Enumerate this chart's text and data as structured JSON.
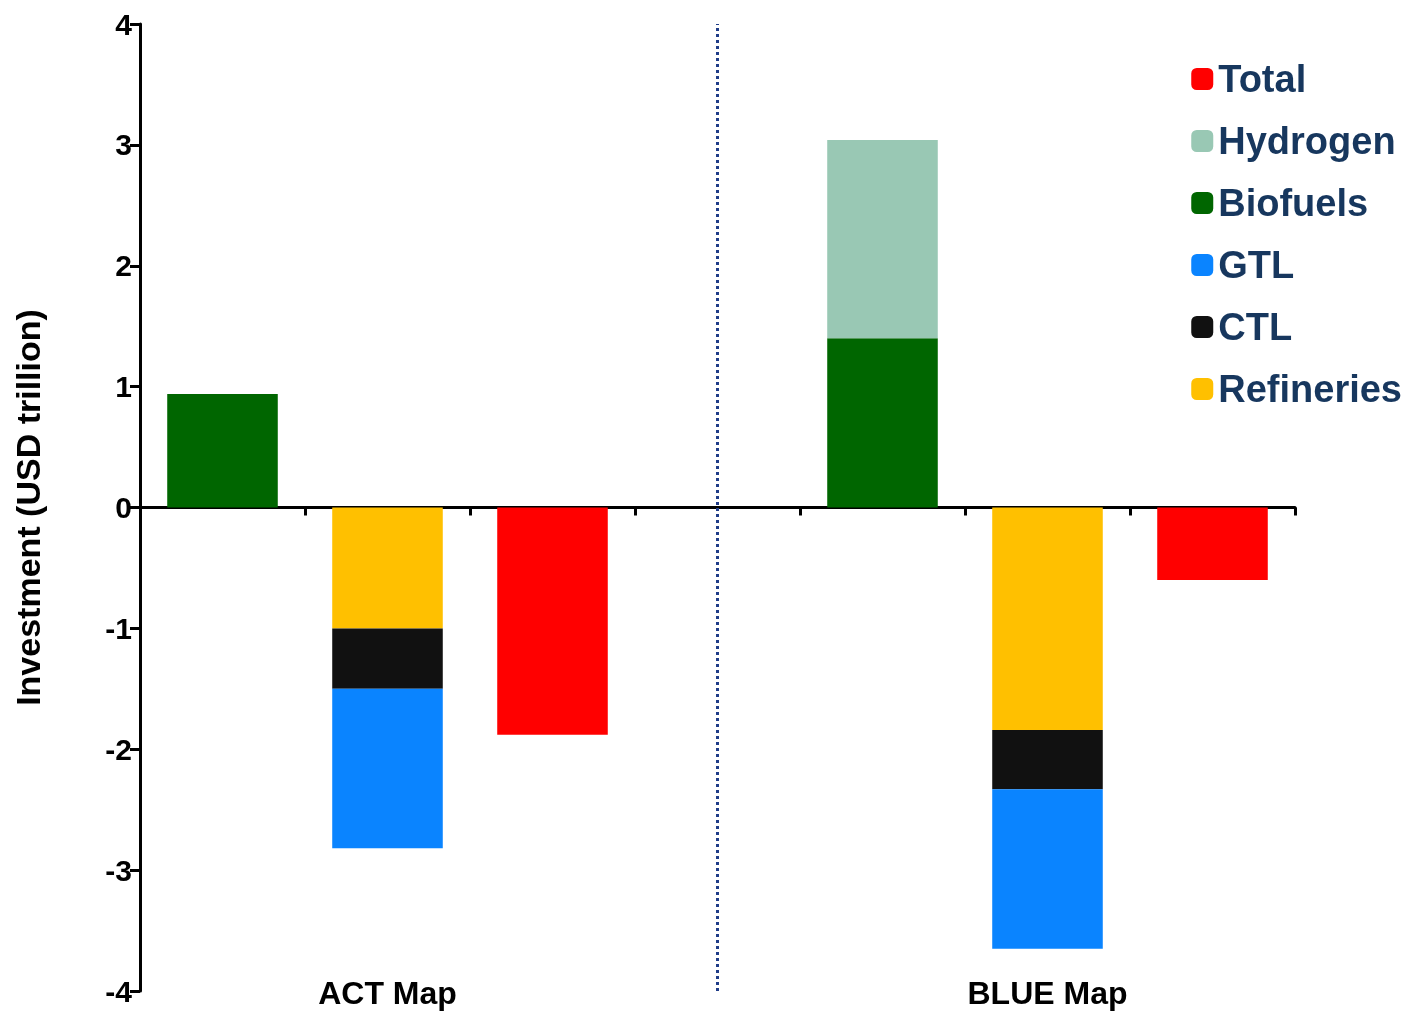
{
  "chart_data": {
    "type": "bar",
    "ylabel": "Investment (USD trillion)",
    "categories": [
      null,
      "ACT Map",
      null,
      null,
      null,
      "BLUE Map",
      null
    ],
    "stacked": true,
    "ylim": [
      -4,
      4
    ],
    "yticks": [
      -4,
      -3,
      -2,
      -1,
      0,
      1,
      2,
      3,
      4
    ],
    "grid": false,
    "legend": "top right",
    "series": [
      {
        "name": "Refineries",
        "color": "#ffc000",
        "values": [
          null,
          -1.0,
          null,
          null,
          null,
          -1.84,
          null
        ]
      },
      {
        "name": "CTL",
        "color": "#111111",
        "values": [
          null,
          -0.5,
          null,
          null,
          null,
          -0.49,
          null
        ]
      },
      {
        "name": "GTL",
        "color": "#0a84ff",
        "values": [
          null,
          -1.32,
          null,
          null,
          null,
          -1.32,
          null
        ]
      },
      {
        "name": "Biofuels",
        "color": "#006600",
        "values": [
          0.94,
          null,
          null,
          null,
          1.4,
          null,
          null
        ]
      },
      {
        "name": "Hydrogen",
        "color": "#99c8b4",
        "values": [
          null,
          null,
          null,
          null,
          1.64,
          null,
          null
        ]
      },
      {
        "name": "Total",
        "color": "#ff0000",
        "values": [
          null,
          null,
          -1.88,
          null,
          null,
          null,
          -0.6
        ]
      }
    ]
  }
}
